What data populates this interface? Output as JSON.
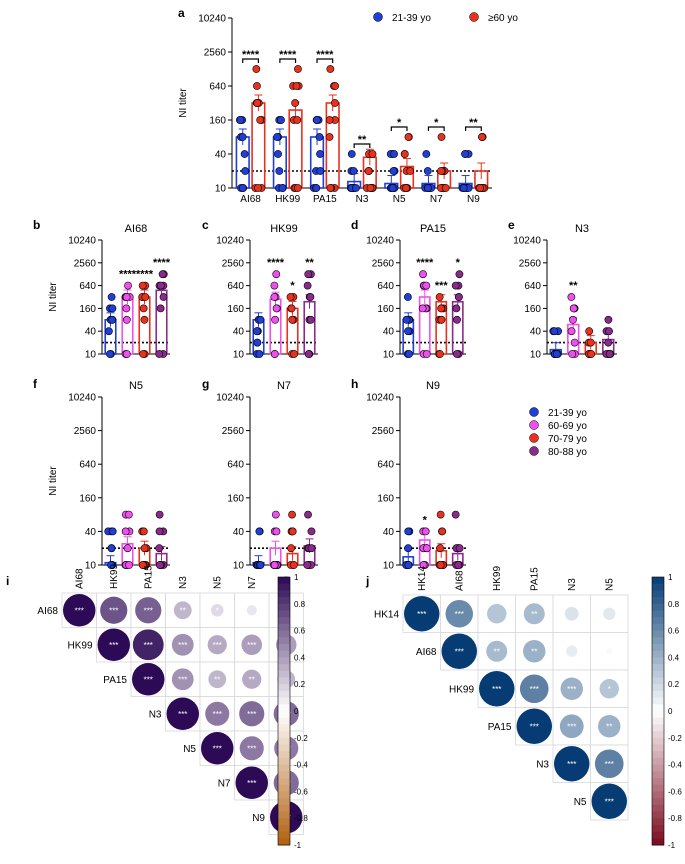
{
  "colors": {
    "young": "#1f3fd6",
    "age60": "#f04ff0",
    "age70": "#e8321e",
    "age80": "#8a2a8c",
    "old": "#e8321e",
    "dotted": "#000000",
    "seq_low": "#ffffff",
    "seq_high": "#2d0a55",
    "div_neg": "#b06010",
    "div_pos": "#063c73"
  },
  "legend_a": {
    "young": "21-39 yo",
    "old": "≥60 yo"
  },
  "legend_age": [
    "21-39 yo",
    "60-69 yo",
    "70-79 yo",
    "80-88 yo"
  ],
  "chart_data": [
    {
      "id": "a",
      "panel_label": "a",
      "type": "bar",
      "title": "",
      "ylabel": "NI  titer",
      "yscale": "log2",
      "ylim": [
        10,
        10240
      ],
      "yticks": [
        "10",
        "40",
        "160",
        "640",
        "2560",
        "10240"
      ],
      "threshold": 20,
      "categories": [
        "AI68",
        "HK99",
        "PA15",
        "N3",
        "N5",
        "N7",
        "N9"
      ],
      "series": [
        {
          "name": "21-39 yo",
          "values": [
            80,
            80,
            80,
            13,
            12,
            12,
            12
          ]
        },
        {
          "name": "≥60 yo",
          "values": [
            320,
            240,
            320,
            35,
            24,
            20,
            20
          ]
        }
      ],
      "significance": [
        "****",
        "****",
        "****",
        "**",
        "*",
        "*",
        "**"
      ]
    },
    {
      "id": "b",
      "panel_label": "b",
      "type": "bar",
      "title": "AI68",
      "ylabel": "NI  titer",
      "yscale": "log2",
      "ylim": [
        10,
        10240
      ],
      "yticks": [
        "10",
        "40",
        "160",
        "640",
        "2560",
        "10240"
      ],
      "threshold": 20,
      "categories": [
        "21-39 yo",
        "60-69 yo",
        "70-79 yo",
        "80-88 yo"
      ],
      "values": [
        80,
        320,
        320,
        480
      ],
      "significance": [
        "",
        "****",
        "****",
        "****"
      ]
    },
    {
      "id": "c",
      "panel_label": "c",
      "type": "bar",
      "title": "HK99",
      "ylabel": "",
      "yscale": "log2",
      "ylim": [
        10,
        10240
      ],
      "yticks": [
        "10",
        "40",
        "160",
        "640",
        "2560",
        "10240"
      ],
      "threshold": 20,
      "categories": [
        "21-39 yo",
        "60-69 yo",
        "70-79 yo",
        "80-88 yo"
      ],
      "values": [
        80,
        280,
        160,
        240
      ],
      "significance": [
        "",
        "****",
        "*",
        "**"
      ]
    },
    {
      "id": "d",
      "panel_label": "d",
      "type": "bar",
      "title": "PA15",
      "ylabel": "",
      "yscale": "log2",
      "ylim": [
        10,
        10240
      ],
      "yticks": [
        "10",
        "40",
        "160",
        "640",
        "2560",
        "10240"
      ],
      "threshold": 20,
      "categories": [
        "21-39 yo",
        "60-69 yo",
        "70-79 yo",
        "80-88 yo"
      ],
      "values": [
        80,
        320,
        240,
        240
      ],
      "significance": [
        "",
        "****",
        "***",
        "*"
      ]
    },
    {
      "id": "e",
      "panel_label": "e",
      "type": "bar",
      "title": "N3",
      "ylabel": "",
      "yscale": "log2",
      "ylim": [
        10,
        10240
      ],
      "yticks": [
        "10",
        "40",
        "160",
        "640",
        "2560",
        "10240"
      ],
      "threshold": 20,
      "categories": [
        "21-39 yo",
        "60-69 yo",
        "70-79 yo",
        "80-88 yo"
      ],
      "values": [
        13,
        60,
        20,
        24
      ],
      "significance": [
        "",
        "**",
        "",
        ""
      ]
    },
    {
      "id": "f",
      "panel_label": "f",
      "type": "bar",
      "title": "N5",
      "ylabel": "NI  titer",
      "yscale": "log2",
      "ylim": [
        10,
        10240
      ],
      "yticks": [
        "10",
        "40",
        "160",
        "640",
        "2560",
        "10240"
      ],
      "threshold": 20,
      "categories": [
        "21-39 yo",
        "60-69 yo",
        "70-79 yo",
        "80-88 yo"
      ],
      "values": [
        11,
        24,
        20,
        16
      ],
      "significance": [
        "",
        "",
        "",
        ""
      ]
    },
    {
      "id": "g",
      "panel_label": "g",
      "type": "bar",
      "title": "N7",
      "ylabel": "",
      "yscale": "log2",
      "ylim": [
        10,
        10240
      ],
      "yticks": [
        "10",
        "40",
        "160",
        "640",
        "2560",
        "10240"
      ],
      "threshold": 20,
      "categories": [
        "21-39 yo",
        "60-69 yo",
        "70-79 yo",
        "80-88 yo"
      ],
      "values": [
        11,
        20,
        16,
        22
      ],
      "significance": [
        "",
        "",
        "",
        ""
      ]
    },
    {
      "id": "h",
      "panel_label": "h",
      "type": "bar",
      "title": "N9",
      "ylabel": "",
      "yscale": "log2",
      "ylim": [
        10,
        10240
      ],
      "yticks": [
        "10",
        "40",
        "160",
        "640",
        "2560",
        "10240"
      ],
      "threshold": 20,
      "categories": [
        "21-39 yo",
        "60-69 yo",
        "70-79 yo",
        "80-88 yo"
      ],
      "values": [
        14,
        28,
        18,
        16
      ],
      "significance": [
        "",
        "*",
        "",
        ""
      ]
    },
    {
      "id": "i",
      "panel_label": "i",
      "type": "heatmap",
      "title": "",
      "labels": [
        "AI68",
        "HK99",
        "PA15",
        "N3",
        "N5",
        "N7",
        "N9"
      ],
      "colorbar_ticks": [
        "1",
        "0.8",
        "0.6",
        "0.4",
        "0.2",
        "0",
        "-0.2",
        "-0.4",
        "-0.6",
        "-0.8",
        "-1"
      ],
      "matrix": [
        [
          1.0,
          0.7,
          0.65,
          0.3,
          0.15,
          0.1,
          0.08
        ],
        [
          null,
          1.0,
          0.9,
          0.45,
          0.35,
          0.4,
          0.4
        ],
        [
          null,
          null,
          1.0,
          0.45,
          0.3,
          0.35,
          0.3
        ],
        [
          null,
          null,
          null,
          1.0,
          0.55,
          0.6,
          0.6
        ],
        [
          null,
          null,
          null,
          null,
          1.0,
          0.55,
          0.55
        ],
        [
          null,
          null,
          null,
          null,
          null,
          1.0,
          0.6
        ],
        [
          null,
          null,
          null,
          null,
          null,
          null,
          1.0
        ]
      ],
      "stars": [
        [
          "***",
          "***",
          "***",
          "**",
          "*",
          "",
          ""
        ],
        [
          "",
          "***",
          "***",
          "***",
          "***",
          "***",
          "***"
        ],
        [
          "",
          "",
          "***",
          "***",
          "**",
          "**",
          "**"
        ],
        [
          "",
          "",
          "",
          "***",
          "***",
          "***",
          "***"
        ],
        [
          "",
          "",
          "",
          "",
          "***",
          "***",
          "***"
        ],
        [
          "",
          "",
          "",
          "",
          "",
          "***",
          "***"
        ],
        [
          "",
          "",
          "",
          "",
          "",
          "",
          "***"
        ]
      ]
    },
    {
      "id": "j",
      "panel_label": "j",
      "type": "heatmap",
      "title": "",
      "labels": [
        "HK14",
        "AI68",
        "HK99",
        "PA15",
        "N3",
        "N5"
      ],
      "colorbar_ticks": [
        "1",
        "0.8",
        "0.6",
        "0.4",
        "0.2",
        "0",
        "-0.2",
        "-0.4",
        "-0.6",
        "-0.8",
        "-1"
      ],
      "matrix": [
        [
          1.0,
          0.6,
          0.3,
          0.35,
          0.15,
          0.12
        ],
        [
          null,
          1.0,
          0.35,
          0.4,
          0.1,
          0.03
        ],
        [
          null,
          null,
          1.0,
          0.65,
          0.4,
          0.3
        ],
        [
          null,
          null,
          null,
          1.0,
          0.45,
          0.4
        ],
        [
          null,
          null,
          null,
          null,
          1.0,
          0.65
        ],
        [
          null,
          null,
          null,
          null,
          null,
          1.0
        ]
      ],
      "stars": [
        [
          "***",
          "***",
          "",
          "**",
          "",
          ""
        ],
        [
          "",
          "***",
          "**",
          "**",
          "",
          ""
        ],
        [
          "",
          "",
          "***",
          "***",
          "***",
          "*"
        ],
        [
          "",
          "",
          "",
          "***",
          "***",
          "**"
        ],
        [
          "",
          "",
          "",
          "",
          "***",
          "***"
        ],
        [
          "",
          "",
          "",
          "",
          "",
          "***"
        ]
      ]
    }
  ]
}
